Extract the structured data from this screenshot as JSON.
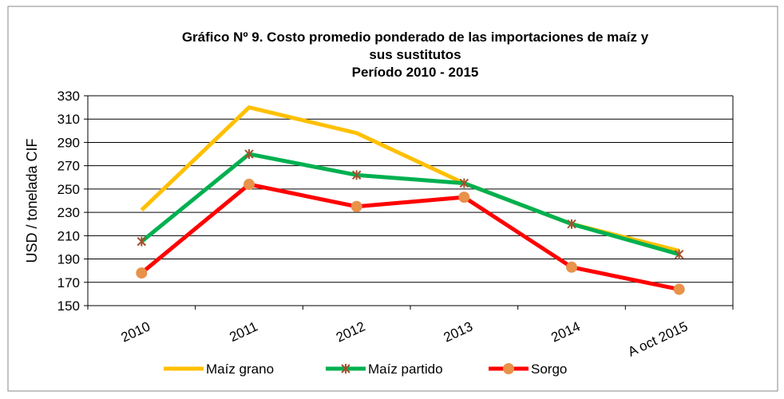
{
  "chart_data": {
    "type": "line",
    "title": [
      "Gráfico Nº 9. Costo promedio ponderado de las importaciones de maíz y",
      "sus sustitutos",
      "Período 2010 - 2015"
    ],
    "y_label": "USD / tonelada CIF",
    "categories": [
      "2010",
      "2011",
      "2012",
      "2013",
      "2014",
      "A oct 2015"
    ],
    "series": [
      {
        "name": "Maíz grano",
        "color": "#ffc000",
        "marker": "none",
        "values": [
          232,
          320,
          298,
          255,
          220,
          197
        ]
      },
      {
        "name": "Maíz partido",
        "color": "#00b050",
        "marker": "star",
        "marker_color": "#a0522d",
        "values": [
          205,
          280,
          262,
          255,
          220,
          194
        ]
      },
      {
        "name": "Sorgo",
        "color": "#ff0000",
        "marker": "circle",
        "marker_color": "#e8924a",
        "values": [
          178,
          254,
          235,
          243,
          183,
          164
        ]
      }
    ],
    "ylim": [
      150,
      330
    ],
    "yticks": [
      150,
      170,
      190,
      210,
      230,
      250,
      270,
      290,
      310,
      330
    ],
    "grid": true
  }
}
